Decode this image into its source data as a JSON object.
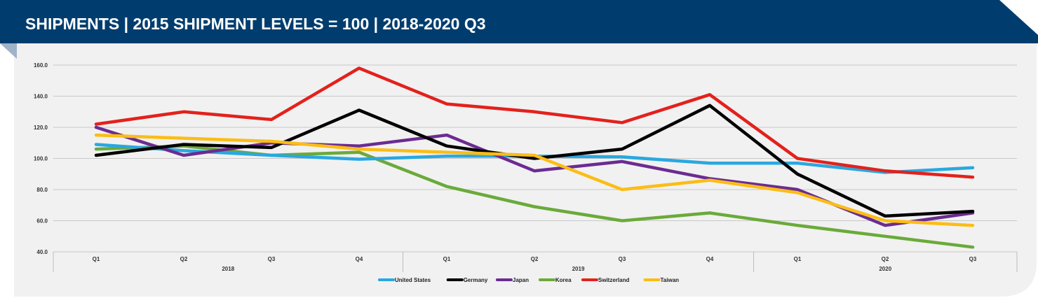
{
  "header": {
    "title": "SHIPMENTS | 2015 SHIPMENT LEVELS = 100 | 2018-2020 Q3",
    "background_color": "#003d6e",
    "accent_color": "#9fb3c8"
  },
  "chart_data": {
    "type": "line",
    "title": "SHIPMENTS | 2015 SHIPMENT LEVELS = 100 | 2018-2020 Q3",
    "xlabel": "",
    "ylabel": "",
    "ylim": [
      40,
      160
    ],
    "yticks": [
      "40.0",
      "60.0",
      "80.0",
      "100.0",
      "120.0",
      "140.0",
      "160.0"
    ],
    "ytick_values": [
      40,
      60,
      80,
      100,
      120,
      140,
      160
    ],
    "grid": true,
    "legend_position": "bottom",
    "categories": [
      "Q1",
      "Q2",
      "Q3",
      "Q4",
      "Q1",
      "Q2",
      "Q3",
      "Q4",
      "Q1",
      "Q2",
      "Q3"
    ],
    "year_groups": [
      {
        "label": "2018",
        "start": 0,
        "end": 3
      },
      {
        "label": "2019",
        "start": 4,
        "end": 7
      },
      {
        "label": "2020",
        "start": 8,
        "end": 10
      }
    ],
    "series": [
      {
        "name": "United States",
        "color": "#29a8e0",
        "values": [
          109,
          105,
          102,
          99.5,
          101.5,
          101.5,
          101,
          97,
          97,
          91,
          94
        ]
      },
      {
        "name": "Germany",
        "color": "#000000",
        "values": [
          102,
          109,
          107,
          131,
          108,
          100,
          106,
          134,
          90,
          63,
          66
        ]
      },
      {
        "name": "Japan",
        "color": "#6b2c91",
        "values": [
          120,
          102,
          110,
          108,
          115,
          92,
          98,
          87,
          80,
          57,
          65
        ]
      },
      {
        "name": "Korea",
        "color": "#6aaa3a",
        "values": [
          106,
          108,
          102,
          104,
          82,
          69,
          60,
          65,
          57,
          50,
          43
        ]
      },
      {
        "name": "Switzerland",
        "color": "#e3211c",
        "values": [
          122,
          130,
          125,
          158,
          135,
          130,
          123,
          141,
          100,
          92,
          88
        ]
      },
      {
        "name": "Taiwan",
        "color": "#fbbd16",
        "values": [
          115,
          113,
          111,
          106,
          104,
          102,
          80,
          86,
          78,
          60,
          57
        ]
      }
    ]
  }
}
